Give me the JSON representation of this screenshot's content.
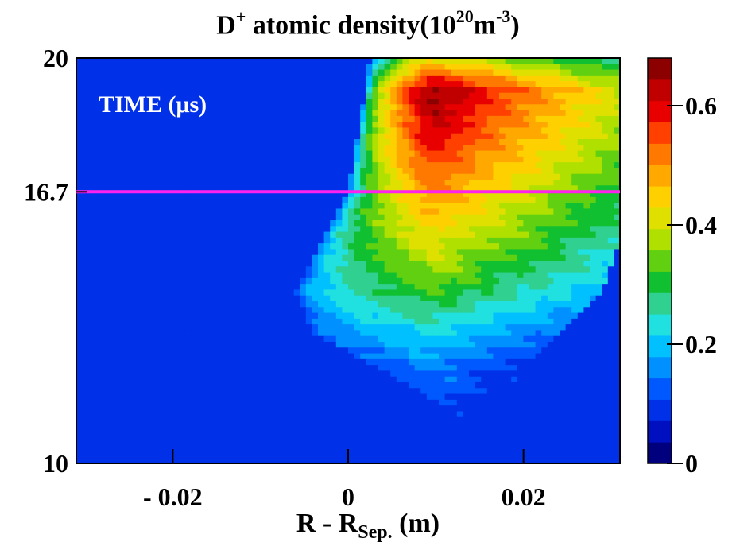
{
  "chart_data": {
    "type": "heatmap",
    "title": {
      "species": "D",
      "charge": "+",
      "quantity": "atomic density(10",
      "exponent": "20",
      "unit_base": "m",
      "unit_exp": "-3",
      "close": ")"
    },
    "xlabel": {
      "main": "R - R",
      "subscript": "Sep.",
      "unit": " (m)"
    },
    "annotation": "TIME (μs)",
    "x_range": [
      -0.031,
      0.031
    ],
    "y_range": [
      10,
      20
    ],
    "x_ticks": [
      {
        "value": -0.02,
        "label": "- 0.02"
      },
      {
        "value": 0,
        "label": "0"
      },
      {
        "value": 0.02,
        "label": "0.02"
      }
    ],
    "y_ticks": [
      {
        "value": 10,
        "label": "10"
      },
      {
        "value": 16.7,
        "label": "16.7"
      },
      {
        "value": 20,
        "label": "20"
      }
    ],
    "reference_line": {
      "time": 16.7,
      "color": "#ff22ee"
    },
    "colorbar": {
      "range": [
        0,
        0.68
      ],
      "ticks": [
        {
          "value": 0,
          "label": "0"
        },
        {
          "value": 0.2,
          "label": "0.2"
        },
        {
          "value": 0.4,
          "label": "0.4"
        },
        {
          "value": 0.6,
          "label": "0.6"
        }
      ],
      "colors": [
        "#00007f",
        "#0010c0",
        "#0030e8",
        "#0058ff",
        "#0090ff",
        "#00c0ff",
        "#20e0e0",
        "#30d090",
        "#10c030",
        "#60d010",
        "#b0e000",
        "#e0e000",
        "#ffd000",
        "#ffa800",
        "#ff7800",
        "#ff4000",
        "#e80000",
        "#c00000",
        "#8c0000"
      ]
    },
    "background_value": 0.1,
    "ridges": [
      {
        "y": 20.0,
        "peak": 0.42,
        "x_left": 0.0025,
        "x_right": 0.031
      },
      {
        "y": 19.2,
        "peak": 0.66,
        "x_left": 0.002,
        "x_right": 0.031
      },
      {
        "y": 18.0,
        "peak": 0.6,
        "x_left": 0.001,
        "x_right": 0.031
      },
      {
        "y": 16.7,
        "peak": 0.5,
        "x_left": 0.0,
        "x_right": 0.031
      },
      {
        "y": 15.5,
        "peak": 0.42,
        "x_left": -0.003,
        "x_right": 0.031
      },
      {
        "y": 14.2,
        "peak": 0.32,
        "x_left": -0.006,
        "x_right": 0.029
      },
      {
        "y": 13.2,
        "peak": 0.22,
        "x_left": -0.004,
        "x_right": 0.024
      },
      {
        "y": 12.3,
        "peak": 0.15,
        "x_left": 0.004,
        "x_right": 0.02
      },
      {
        "y": 11.3,
        "peak": 0.11,
        "x_left": 0.012,
        "x_right": 0.02
      },
      {
        "y": 10.0,
        "peak": 0.1,
        "x_left": 0.02,
        "x_right": 0.021
      }
    ],
    "peak_x": 0.0095,
    "grid": false,
    "legend": "none"
  }
}
